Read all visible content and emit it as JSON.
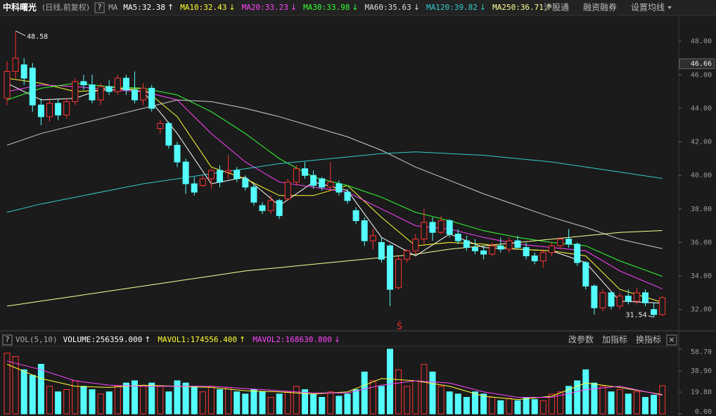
{
  "header": {
    "title": "中科曙光",
    "period": "(日线,前复权)",
    "help": "?",
    "ma": "MA",
    "ma_labels": [
      {
        "text": "MA5:32.38",
        "arrow": "↑",
        "color": "#ffffff"
      },
      {
        "text": "MA10:32.43",
        "arrow": "↓",
        "color": "#ffff33"
      },
      {
        "text": "MA20:33.23",
        "arrow": "↓",
        "color": "#ff44ff"
      },
      {
        "text": "MA30:33.98",
        "arrow": "↓",
        "color": "#33ff33"
      },
      {
        "text": "MA60:35.63",
        "arrow": "↓",
        "color": "#dddddd"
      },
      {
        "text": "MA120:39.82",
        "arrow": "↓",
        "color": "#33cccc"
      },
      {
        "text": "MA250:36.71",
        "arrow": "↑",
        "color": "#ffff99"
      }
    ],
    "links": [
      "沪股通",
      "融资融券",
      "设置均线"
    ]
  },
  "volume_header": {
    "help": "?",
    "name": "VOL(5,10)",
    "items": [
      {
        "text": "VOLUME:256359.000",
        "arrow": "↑",
        "color": "#ffffff"
      },
      {
        "text": "MAVOL1:174556.400",
        "arrow": "↑",
        "color": "#ffff33"
      },
      {
        "text": "MAVOL2:168630.800",
        "arrow": "↓",
        "color": "#ff44ff"
      }
    ],
    "buttons": [
      "改参数",
      "加指标",
      "换指标"
    ],
    "close": "×"
  },
  "chart_data": [
    {
      "type": "candlestick",
      "up_color": "#ff3232",
      "down_color": "#54fcfc",
      "candles": [
        [
          44.6,
          46.8,
          44.2,
          46.2
        ],
        [
          46.2,
          48.58,
          45.8,
          47.0
        ],
        [
          46.6,
          47.0,
          45.4,
          45.8
        ],
        [
          46.4,
          46.7,
          43.8,
          44.2
        ],
        [
          44.2,
          44.6,
          43.0,
          43.5
        ],
        [
          43.5,
          44.6,
          43.2,
          44.3
        ],
        [
          44.3,
          44.6,
          43.3,
          43.6
        ],
        [
          43.6,
          44.6,
          43.4,
          44.4
        ],
        [
          44.4,
          45.8,
          44.2,
          45.6
        ],
        [
          45.6,
          46.0,
          45.1,
          45.4
        ],
        [
          45.4,
          46.0,
          44.3,
          44.5
        ],
        [
          44.5,
          45.5,
          44.2,
          45.3
        ],
        [
          45.3,
          45.7,
          44.8,
          45.0
        ],
        [
          45.0,
          46.0,
          44.8,
          45.8
        ],
        [
          45.8,
          46.0,
          44.8,
          45.1
        ],
        [
          45.1,
          46.2,
          44.3,
          44.5
        ],
        [
          44.5,
          45.5,
          44.2,
          45.2
        ],
        [
          45.2,
          45.4,
          43.8,
          44.0
        ],
        [
          42.8,
          43.3,
          42.5,
          43.1
        ],
        [
          43.1,
          43.2,
          41.6,
          41.8
        ],
        [
          41.8,
          42.0,
          40.5,
          40.8
        ],
        [
          40.8,
          41.0,
          38.9,
          39.5
        ],
        [
          39.5,
          39.9,
          38.8,
          39.0
        ],
        [
          39.4,
          40.0,
          39.3,
          39.8
        ],
        [
          39.8,
          40.4,
          39.2,
          40.3
        ],
        [
          40.3,
          40.6,
          39.3,
          39.6
        ],
        [
          40.2,
          41.2,
          39.8,
          40.3
        ],
        [
          40.3,
          40.5,
          39.6,
          39.8
        ],
        [
          39.8,
          40.0,
          39.1,
          39.3
        ],
        [
          39.3,
          39.5,
          38.2,
          38.4
        ],
        [
          38.2,
          38.4,
          37.7,
          37.9
        ],
        [
          37.9,
          38.8,
          37.7,
          38.5
        ],
        [
          38.5,
          38.6,
          37.4,
          37.6
        ],
        [
          38.6,
          39.8,
          38.5,
          39.6
        ],
        [
          39.6,
          40.6,
          39.4,
          40.4
        ],
        [
          40.4,
          40.8,
          39.8,
          40.0
        ],
        [
          40.0,
          40.3,
          39.2,
          39.4
        ],
        [
          39.8,
          39.9,
          39.1,
          39.3
        ],
        [
          39.3,
          40.8,
          39.1,
          39.6
        ],
        [
          39.5,
          39.7,
          38.8,
          39.0
        ],
        [
          39.0,
          39.2,
          38.3,
          38.5
        ],
        [
          37.9,
          38.1,
          37.1,
          37.3
        ],
        [
          37.3,
          37.5,
          35.8,
          36.1
        ],
        [
          36.1,
          36.8,
          35.6,
          36.4
        ],
        [
          36.0,
          36.3,
          34.8,
          35.0
        ],
        [
          35.8,
          35.9,
          32.2,
          33.2
        ],
        [
          33.3,
          35.2,
          33.2,
          35.0
        ],
        [
          35.0,
          35.6,
          34.8,
          35.5
        ],
        [
          35.5,
          36.5,
          35.3,
          36.2
        ],
        [
          36.2,
          38.0,
          35.9,
          37.2
        ],
        [
          37.2,
          37.5,
          36.1,
          36.6
        ],
        [
          36.6,
          37.6,
          36.5,
          37.3
        ],
        [
          37.3,
          37.4,
          36.3,
          36.5
        ],
        [
          36.5,
          36.8,
          35.9,
          36.1
        ],
        [
          36.1,
          36.4,
          35.5,
          35.7
        ],
        [
          35.7,
          36.2,
          35.3,
          35.5
        ],
        [
          35.5,
          35.8,
          35.0,
          35.3
        ],
        [
          35.3,
          36.0,
          35.2,
          35.8
        ],
        [
          35.8,
          36.3,
          35.4,
          35.6
        ],
        [
          35.6,
          36.3,
          35.4,
          36.1
        ],
        [
          36.1,
          36.4,
          35.6,
          35.7
        ],
        [
          35.7,
          36.0,
          35.0,
          35.2
        ],
        [
          35.2,
          35.4,
          34.7,
          34.9
        ],
        [
          34.9,
          35.6,
          34.5,
          35.4
        ],
        [
          35.4,
          36.0,
          35.2,
          35.8
        ],
        [
          35.8,
          36.3,
          35.6,
          36.2
        ],
        [
          36.2,
          36.8,
          35.7,
          35.9
        ],
        [
          35.9,
          36.0,
          34.6,
          34.8
        ],
        [
          34.8,
          34.9,
          33.2,
          33.4
        ],
        [
          33.4,
          33.5,
          31.7,
          32.1
        ],
        [
          32.1,
          33.2,
          31.9,
          33.0
        ],
        [
          33.0,
          33.1,
          32.0,
          32.2
        ],
        [
          32.2,
          33.0,
          32.0,
          32.8
        ],
        [
          32.8,
          33.2,
          32.3,
          32.5
        ],
        [
          32.5,
          33.3,
          32.3,
          33.0
        ],
        [
          33.0,
          33.2,
          32.2,
          32.4
        ],
        [
          32.0,
          32.4,
          31.54,
          31.7
        ],
        [
          31.7,
          32.8,
          31.6,
          32.7
        ]
      ],
      "series": [
        {
          "name": "MA5",
          "color": "#ffffff",
          "x": [
            0,
            4,
            8,
            12,
            16,
            20,
            24,
            28,
            32,
            36,
            40,
            44,
            48,
            52,
            56,
            60,
            64,
            68,
            72,
            77
          ],
          "values": [
            45.5,
            44.5,
            44.6,
            45.3,
            45.0,
            42.5,
            39.5,
            39.9,
            38.2,
            39.6,
            39.1,
            36.3,
            35.2,
            36.5,
            35.7,
            35.6,
            35.5,
            34.8,
            32.5,
            32.38
          ]
        },
        {
          "name": "MA10",
          "color": "#ffff33",
          "x": [
            0,
            4,
            8,
            12,
            16,
            20,
            24,
            28,
            32,
            36,
            40,
            44,
            48,
            52,
            56,
            60,
            64,
            68,
            72,
            77
          ],
          "values": [
            45.8,
            45.5,
            45.0,
            45.1,
            45.2,
            43.5,
            40.5,
            39.8,
            38.8,
            38.8,
            39.4,
            37.5,
            35.8,
            36.0,
            35.9,
            35.6,
            35.5,
            35.2,
            33.2,
            32.43
          ]
        },
        {
          "name": "MA20",
          "color": "#ff44ff",
          "x": [
            0,
            4,
            8,
            12,
            16,
            20,
            24,
            28,
            32,
            36,
            40,
            44,
            48,
            52,
            56,
            60,
            64,
            68,
            72,
            77
          ],
          "values": [
            45.0,
            45.4,
            45.3,
            45.1,
            45.0,
            44.5,
            42.5,
            40.8,
            39.6,
            39.3,
            39.0,
            38.0,
            37.0,
            36.8,
            36.3,
            35.9,
            35.7,
            35.5,
            34.3,
            33.23
          ]
        },
        {
          "name": "MA30",
          "color": "#33ff33",
          "x": [
            0,
            4,
            8,
            12,
            16,
            20,
            24,
            28,
            32,
            36,
            40,
            44,
            48,
            52,
            56,
            60,
            64,
            68,
            72,
            77
          ],
          "values": [
            44.5,
            45.2,
            45.5,
            45.3,
            45.2,
            44.8,
            43.8,
            42.5,
            41.0,
            39.9,
            39.4,
            38.7,
            37.8,
            37.3,
            36.7,
            36.3,
            36.0,
            35.8,
            34.9,
            33.98
          ]
        },
        {
          "name": "MA60",
          "color": "#cccccc",
          "x": [
            0,
            4,
            8,
            12,
            16,
            20,
            24,
            28,
            32,
            36,
            40,
            44,
            48,
            52,
            56,
            60,
            64,
            68,
            72,
            77
          ],
          "values": [
            41.8,
            42.5,
            43.0,
            43.5,
            44.0,
            44.5,
            44.4,
            44.0,
            43.5,
            42.9,
            42.3,
            41.5,
            40.5,
            39.7,
            38.9,
            38.2,
            37.5,
            36.9,
            36.2,
            35.63
          ]
        },
        {
          "name": "MA120",
          "color": "#33cccc",
          "x": [
            0,
            4,
            8,
            12,
            16,
            20,
            24,
            28,
            32,
            36,
            40,
            44,
            48,
            52,
            56,
            60,
            64,
            68,
            72,
            77
          ],
          "values": [
            37.8,
            38.3,
            38.7,
            39.1,
            39.5,
            39.8,
            40.1,
            40.4,
            40.7,
            40.9,
            41.1,
            41.3,
            41.4,
            41.3,
            41.2,
            41.0,
            40.8,
            40.5,
            40.2,
            39.82
          ]
        },
        {
          "name": "MA250",
          "color": "#ffff99",
          "x": [
            0,
            4,
            8,
            12,
            16,
            20,
            24,
            28,
            32,
            36,
            40,
            44,
            48,
            52,
            56,
            60,
            64,
            68,
            72,
            77
          ],
          "values": [
            32.2,
            32.5,
            32.8,
            33.1,
            33.4,
            33.7,
            34.0,
            34.3,
            34.5,
            34.7,
            34.9,
            35.1,
            35.3,
            35.6,
            35.8,
            36.0,
            36.2,
            36.4,
            36.6,
            36.71
          ]
        }
      ],
      "ylim": [
        31.4,
        48.7
      ],
      "yticks": [
        {
          "value": 32,
          "label": "32.00"
        },
        {
          "value": 34,
          "label": "34.00"
        },
        {
          "value": 36,
          "label": "36.00"
        },
        {
          "value": 38,
          "label": "38.00"
        },
        {
          "value": 40,
          "label": "40.00"
        },
        {
          "value": 42,
          "label": "42.00"
        },
        {
          "value": 44,
          "label": "44.00"
        },
        {
          "value": 46,
          "label": "46.00"
        },
        {
          "value": 48,
          "label": "48.00"
        }
      ],
      "price_marker": 46.66,
      "annotations": [
        48.58,
        31.54
      ],
      "grid": false
    },
    {
      "type": "volume_bar",
      "values": [
        55,
        52,
        40,
        35,
        45,
        25,
        20,
        22,
        30,
        25,
        22,
        18,
        20,
        25,
        28,
        30,
        25,
        28,
        25,
        20,
        30,
        28,
        25,
        20,
        25,
        22,
        24,
        20,
        18,
        22,
        20,
        15,
        18,
        20,
        25,
        22,
        18,
        15,
        20,
        16,
        18,
        22,
        38,
        30,
        25,
        58.7,
        40,
        25,
        30,
        45,
        38,
        25,
        20,
        18,
        15,
        20,
        18,
        15,
        12,
        14,
        12,
        15,
        13,
        12,
        18,
        20,
        25,
        30,
        40,
        28,
        25,
        20,
        22,
        18,
        20,
        15,
        17,
        25.6
      ],
      "series": [
        {
          "name": "MAVOL1",
          "color": "#ffff33",
          "x": [
            0,
            4,
            8,
            12,
            16,
            20,
            24,
            28,
            32,
            36,
            40,
            44,
            48,
            52,
            56,
            60,
            64,
            68,
            72,
            77
          ],
          "values": [
            45,
            32,
            25,
            24,
            26,
            25,
            24,
            21,
            20,
            18,
            20,
            32,
            30,
            25,
            16,
            13,
            16,
            28,
            24,
            17.5
          ]
        },
        {
          "name": "MAVOL2",
          "color": "#ff44ff",
          "x": [
            0,
            4,
            8,
            12,
            16,
            20,
            24,
            28,
            32,
            36,
            40,
            44,
            48,
            52,
            56,
            60,
            64,
            68,
            72,
            77
          ],
          "values": [
            48,
            40,
            30,
            26,
            25,
            25,
            25,
            23,
            21,
            19,
            19,
            26,
            30,
            28,
            20,
            15,
            15,
            22,
            25,
            16.9
          ]
        }
      ],
      "ylim": [
        0,
        58.7
      ],
      "yticks": [
        {
          "value": 0,
          "label": "0.00"
        },
        {
          "value": 19.8,
          "label": "19.80"
        },
        {
          "value": 38.9,
          "label": "38.90"
        },
        {
          "value": 58.7,
          "label": "58.70"
        }
      ]
    }
  ]
}
